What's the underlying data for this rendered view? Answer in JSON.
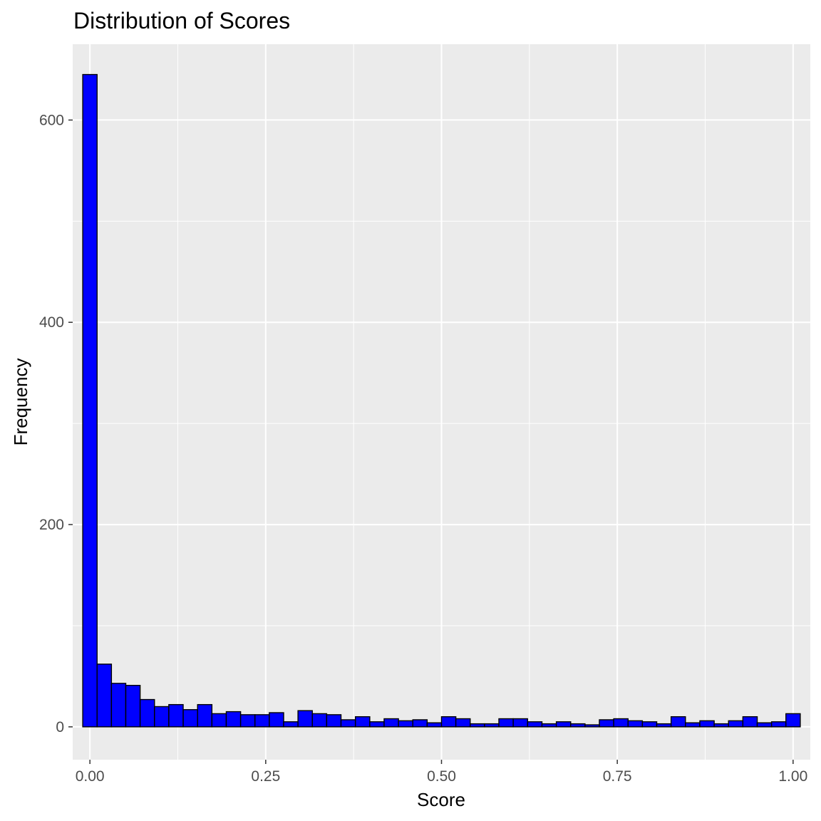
{
  "chart_data": {
    "type": "bar",
    "title": "Distribution of Scores",
    "xlabel": "Score",
    "ylabel": "Frequency",
    "xlim": [
      -0.0245,
      1.0245
    ],
    "ylim": [
      -32.5,
      675
    ],
    "bin_width": 0.0204,
    "x_ticks": [
      0.0,
      0.25,
      0.5,
      0.75,
      1.0
    ],
    "x_tick_labels": [
      "0.00",
      "0.25",
      "0.50",
      "0.75",
      "1.00"
    ],
    "y_ticks": [
      0,
      200,
      400,
      600
    ],
    "y_tick_labels": [
      "0",
      "200",
      "400",
      "600"
    ],
    "x_minor_breaks": [
      0.125,
      0.375,
      0.625,
      0.875
    ],
    "y_minor_breaks": [
      100,
      300,
      500
    ],
    "bin_centers": [
      0.0,
      0.0204,
      0.0408,
      0.0612,
      0.0816,
      0.102,
      0.1224,
      0.1429,
      0.1633,
      0.1837,
      0.2041,
      0.2245,
      0.2449,
      0.2653,
      0.2857,
      0.3061,
      0.3265,
      0.3469,
      0.3673,
      0.3878,
      0.4082,
      0.4286,
      0.449,
      0.4694,
      0.4898,
      0.5102,
      0.5306,
      0.551,
      0.5714,
      0.5918,
      0.6122,
      0.6327,
      0.6531,
      0.6735,
      0.6939,
      0.7143,
      0.7347,
      0.7551,
      0.7755,
      0.7959,
      0.8163,
      0.8367,
      0.8571,
      0.8776,
      0.898,
      0.9184,
      0.9388,
      0.9592,
      0.9796,
      1.0
    ],
    "values": [
      645,
      62,
      43,
      41,
      27,
      20,
      22,
      17,
      22,
      13,
      15,
      12,
      12,
      14,
      5,
      16,
      13,
      12,
      7,
      10,
      5,
      8,
      6,
      7,
      4,
      10,
      8,
      3,
      3,
      8,
      8,
      5,
      3,
      5,
      3,
      2,
      7,
      8,
      6,
      5,
      3,
      10,
      4,
      6,
      3,
      6,
      10,
      4,
      5,
      13
    ],
    "bar_fill": "#0000ff",
    "bar_outline": "#000000",
    "panel_background": "#ebebeb",
    "grid": true,
    "grid_color": "#ffffff",
    "legend": "none"
  }
}
